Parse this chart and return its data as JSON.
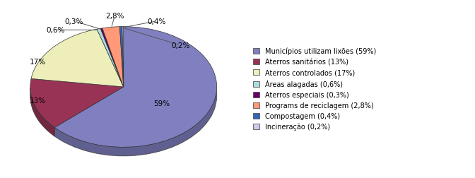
{
  "labels": [
    "Municípios utilizam lixões (59%)",
    "Aterros sanitários (13%)",
    "Aterros controlados (17%)",
    "Áreas alagadas (0,6%)",
    "Aterros especiais (0,3%)",
    "Programs de reciclagem (2,8%)",
    "Compostagem (0,4%)",
    "Incineração (0,2%)"
  ],
  "pct_labels": [
    "59%",
    "13%",
    "17%",
    "0,6%",
    "0,3%",
    "2,8%",
    "0,4%",
    "0,2%"
  ],
  "values": [
    59,
    13,
    17,
    0.6,
    0.3,
    2.8,
    0.4,
    0.2
  ],
  "colors": [
    "#8080C0",
    "#993355",
    "#EEEEBB",
    "#AADDDD",
    "#660066",
    "#FF9977",
    "#3366BB",
    "#CCCCEE"
  ],
  "edge_color": "#333333",
  "background_color": "#ffffff",
  "startangle": 90
}
